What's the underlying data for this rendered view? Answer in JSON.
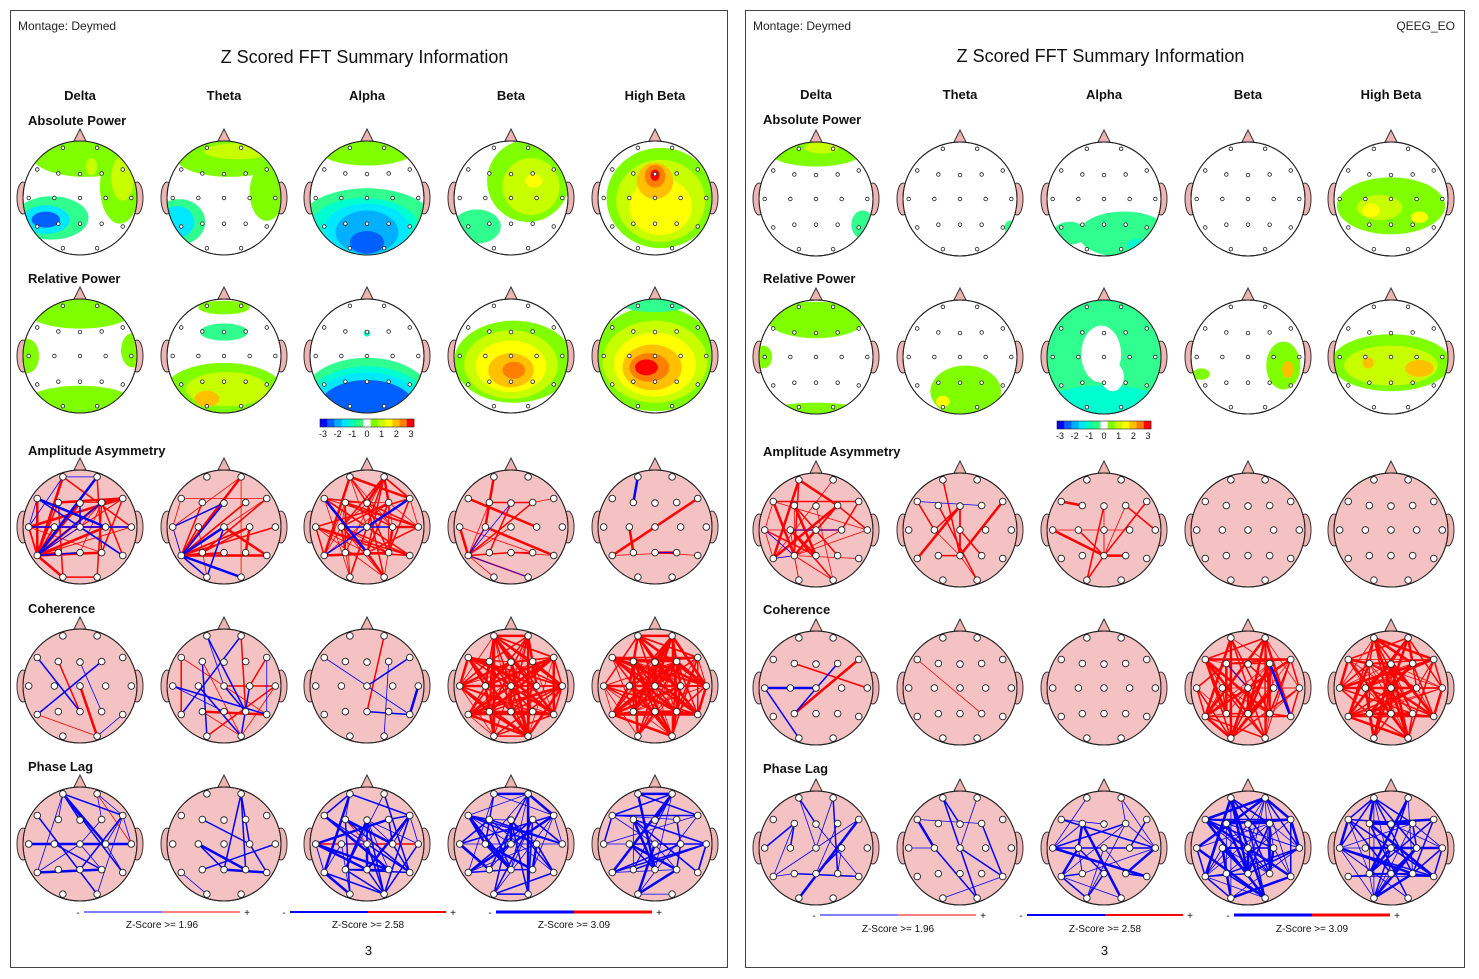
{
  "panels": [
    {
      "montage": "Montage:  Deymed",
      "session": "",
      "title": "Z Scored FFT Summary Information",
      "page": "3"
    },
    {
      "montage": "Montage:  Deymed",
      "session": "QEEG_EO",
      "title": "Z Scored FFT Summary Information",
      "page": "3"
    }
  ],
  "bands": [
    "Delta",
    "Theta",
    "Alpha",
    "Beta",
    "High Beta"
  ],
  "rows": [
    "Absolute Power",
    "Relative Power",
    "Amplitude Asymmetry",
    "Coherence",
    "Phase Lag"
  ],
  "colorbar": {
    "ticks": [
      "-3",
      "-2",
      "-1",
      "0",
      "1",
      "2",
      "3"
    ],
    "colors": [
      "#0000ff",
      "#0060ff",
      "#00b0ff",
      "#00e8ff",
      "#00ffb0",
      "#30ff80",
      "#ffffff",
      "#80ff00",
      "#c8ff00",
      "#ffff00",
      "#ffc000",
      "#ff8000",
      "#ff0000"
    ]
  },
  "legend": [
    {
      "minus": "-",
      "plus": "+",
      "label": "Z-Score >= 1.96"
    },
    {
      "minus": "-",
      "plus": "+",
      "label": "Z-Score >= 2.58"
    },
    {
      "minus": "-",
      "plus": "+",
      "label": "Z-Score >= 3.09"
    }
  ],
  "colors": {
    "positive": "#ff0000",
    "negative": "#0000ff",
    "head_fill": "#f4c2c2",
    "ear_fill": "#eeb4b4"
  }
}
